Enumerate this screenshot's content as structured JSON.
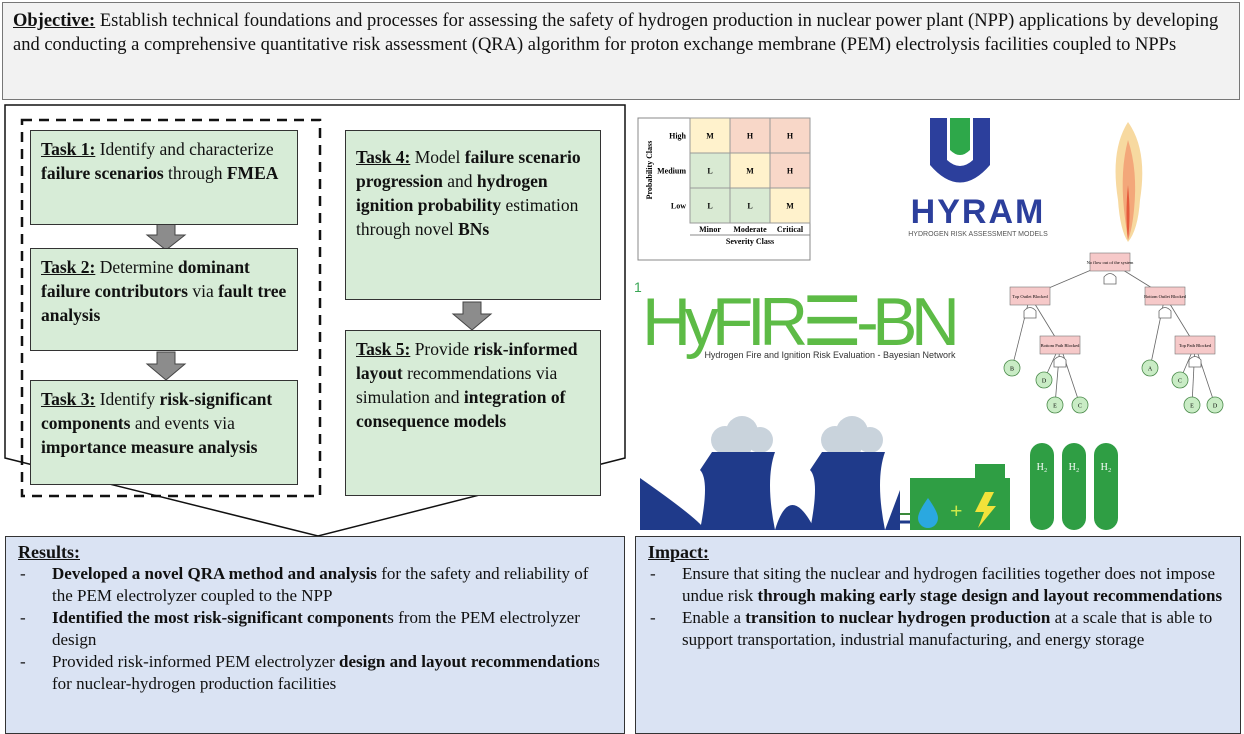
{
  "objective": {
    "label": "Objective:",
    "text": " Establish technical foundations and processes for assessing the safety of hydrogen production in nuclear power plant (NPP) applications by developing and conducting a comprehensive quantitative risk assessment (QRA) algorithm for proton exchange membrane (PEM) electrolysis facilities coupled to NPPs"
  },
  "tasks": [
    {
      "label": "Task 1:",
      "runs": [
        {
          "text": " Identify and characterize "
        },
        {
          "text": "failure scenarios",
          "bold": true
        },
        {
          "text": " through "
        },
        {
          "text": "FMEA",
          "bold": true
        }
      ]
    },
    {
      "label": "Task 2:",
      "runs": [
        {
          "text": " Determine "
        },
        {
          "text": "dominant failure contributors",
          "bold": true
        },
        {
          "text": " via "
        },
        {
          "text": "fault tree analysis",
          "bold": true
        }
      ]
    },
    {
      "label": "Task 3:",
      "runs": [
        {
          "text": " Identify "
        },
        {
          "text": "risk-significant components",
          "bold": true
        },
        {
          "text": " and events via "
        },
        {
          "text": "importance measure analysis",
          "bold": true
        }
      ]
    },
    {
      "label": "Task 4:",
      "runs": [
        {
          "text": " Model "
        },
        {
          "text": "failure scenario progression",
          "bold": true
        },
        {
          "text": " and "
        },
        {
          "text": "hydrogen ignition probability",
          "bold": true
        },
        {
          "text": " estimation through novel "
        },
        {
          "text": "BNs",
          "bold": true
        }
      ]
    },
    {
      "label": "Task 5:",
      "runs": [
        {
          "text": " Provide "
        },
        {
          "text": "risk-informed layout",
          "bold": true
        },
        {
          "text": " recommendations via simulation and "
        },
        {
          "text": "integration of consequence models",
          "bold": true
        }
      ]
    }
  ],
  "results": {
    "title": "Results:",
    "items": [
      [
        {
          "text": "Developed a novel QRA method and analysis",
          "bold": true
        },
        {
          "text": " for the safety and reliability of the PEM electrolyzer coupled to the NPP"
        }
      ],
      [
        {
          "text": "Identified the most risk-significant component",
          "bold": true
        },
        {
          "text": "s from the PEM electrolyzer design"
        }
      ],
      [
        {
          "text": "Provided risk-informed PEM electrolyzer "
        },
        {
          "text": "design and layout recommendation",
          "bold": true
        },
        {
          "text": "s for nuclear-hydrogen production facilities"
        }
      ]
    ]
  },
  "impact": {
    "title": "Impact:",
    "items": [
      [
        {
          "text": "Ensure that siting the nuclear and hydrogen facilities together does not impose undue risk "
        },
        {
          "text": "through making early stage design and layout recommendations",
          "bold": true
        }
      ],
      [
        {
          "text": "Enable a "
        },
        {
          "text": "transition to nuclear hydrogen production",
          "bold": true
        },
        {
          "text": " at a scale that is able to support transportation, industrial manufacturing, and energy storage"
        }
      ]
    ]
  },
  "matrix": {
    "y_title": "Probability Class",
    "x_title": "Severity Class",
    "rows": [
      "High",
      "Medium",
      "Low"
    ],
    "cols": [
      "Minor",
      "Moderate",
      "Critical"
    ],
    "cells": [
      [
        "M",
        "H",
        "H"
      ],
      [
        "L",
        "M",
        "H"
      ],
      [
        "L",
        "L",
        "M"
      ]
    ],
    "colors": {
      "L": "#d9ead3",
      "M": "#fff2cc",
      "H": "#f8d7c8"
    }
  },
  "hyram": {
    "name": "HyRAM",
    "subtitle": "HYDROGEN RISK ASSESSMENT MODELS"
  },
  "hyfire": {
    "note": "1",
    "name": "HyFIR☰-BN",
    "subtitle": "Hydrogen Fire and Ignition Risk Evaluation - Bayesian Network"
  },
  "fault_tree": {
    "events": [
      "No flow out of the system",
      "Top Outlet Blocked",
      "Bottom Outlet Blocked",
      "Bottom Path Blocked",
      "Top Path Blocked"
    ],
    "basics": [
      "B",
      "D",
      "E",
      "C",
      "A",
      "C",
      "E",
      "D"
    ]
  },
  "tanks": [
    "H₂",
    "H₂",
    "H₂"
  ]
}
